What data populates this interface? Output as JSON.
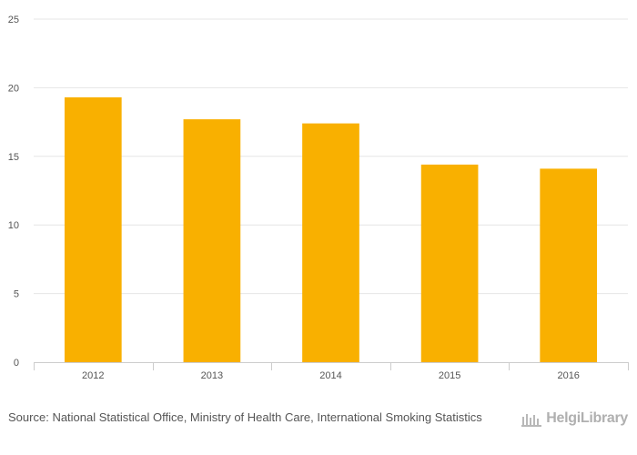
{
  "chart_data": {
    "type": "bar",
    "categories": [
      "2012",
      "2013",
      "2014",
      "2015",
      "2016"
    ],
    "values": [
      19.3,
      17.7,
      17.4,
      14.4,
      14.1
    ],
    "title": "",
    "xlabel": "",
    "ylabel": "",
    "ylim": [
      0,
      25
    ],
    "yticks": [
      0,
      5,
      10,
      15,
      20,
      25
    ],
    "grid": true,
    "legend": "none",
    "bar_color": "#f9b000"
  },
  "footer": {
    "source_prefix": "Source:",
    "source_text": "National Statistical Office, Ministry of Health Care, International Smoking Statistics",
    "brand": "HelgiLibrary",
    "brand_icon": "library-building-icon",
    "brand_color": "#b0b0b0"
  }
}
